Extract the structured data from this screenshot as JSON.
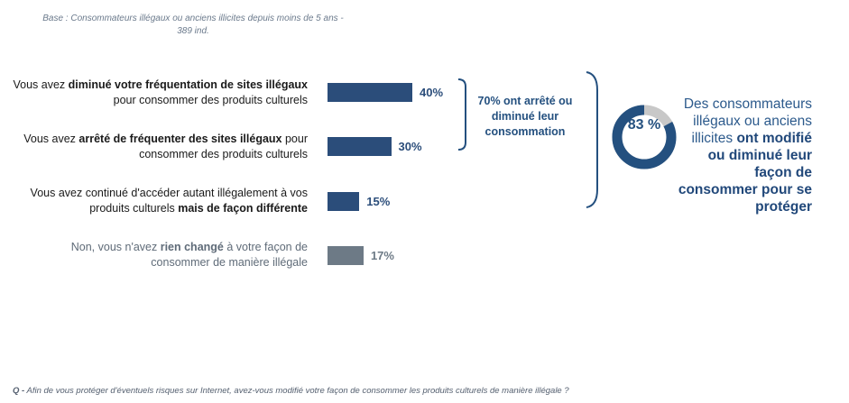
{
  "base_note": {
    "line1": "Base : Consommateurs illégaux ou anciens illicites depuis moins de 5 ans -",
    "line2": "389 ind."
  },
  "rows": [
    {
      "pre": "Vous avez ",
      "bold": "diminué votre fréquentation de sites illégaux",
      "post": " pour consommer des produits culturels",
      "value_label": "40%"
    },
    {
      "pre": "Vous avez ",
      "bold": "arrêté de fréquenter des sites illégaux",
      "post": " pour consommer des produits culturels",
      "value_label": "30%"
    },
    {
      "pre": "Vous avez continué d'accéder autant illégalement à vos produits culturels ",
      "bold": "mais de façon différente",
      "post": "",
      "value_label": "15%"
    },
    {
      "pre": "Non, vous n'avez ",
      "bold": "rien changé",
      "post": " à votre façon de consommer de manière illégale",
      "value_label": "17%"
    }
  ],
  "group_label": "70% ont arrêté ou diminué leur consommation",
  "donut": {
    "value_label": "83 %",
    "percent": 83,
    "color_main": "#24507f",
    "color_rest": "#c8c8c8"
  },
  "side_text": {
    "normal": "Des consommateurs illégaux ou anciens illicites ",
    "bold": "ont modifié ou diminué leur façon de consommer pour se protéger"
  },
  "question": {
    "prefix": "Q -",
    "text": " Afin de vous protéger d'éventuels risques sur Internet, avez-vous modifié votre façon de consommer les produits culturels de manière illégale ?"
  },
  "chart_data": {
    "type": "bar",
    "orientation": "horizontal",
    "categories": [
      "Vous avez diminué votre fréquentation de sites illégaux pour consommer des produits culturels",
      "Vous avez arrêté de fréquenter des sites illégaux pour consommer des produits culturels",
      "Vous avez continué d'accéder autant illégalement à vos produits culturels mais de façon différente",
      "Non, vous n'avez rien changé à votre façon de consommer de manière illégale"
    ],
    "values": [
      40,
      30,
      15,
      17
    ],
    "unit": "%",
    "bar_colors": [
      "#2b4d7a",
      "#2b4d7a",
      "#2b4d7a",
      "#6d7a86"
    ],
    "grid": false
  }
}
